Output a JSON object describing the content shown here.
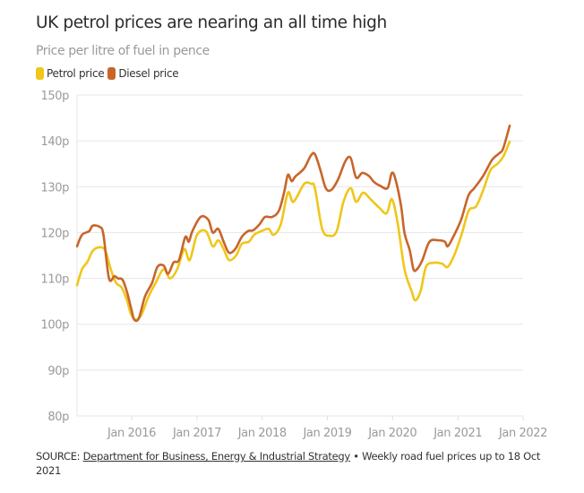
{
  "title": "UK petrol prices are nearing an all time high",
  "subtitle": "Price per litre of fuel in pence",
  "legend": [
    {
      "label": "Petrol price",
      "color": "#f0c619"
    },
    {
      "label": "Diesel price",
      "color": "#c8652b"
    }
  ],
  "source": {
    "prefix": "SOURCE: ",
    "link_text": "Department for Business, Energy & Industrial Strategy",
    "suffix": " • Weekly road fuel prices up to 18 Oct 2021"
  },
  "chart_data": {
    "type": "line",
    "title": "UK petrol prices are nearing an all time high",
    "ylabel": "Price per litre of fuel in pence",
    "ylim": [
      80,
      150
    ],
    "yticks": [
      80,
      90,
      100,
      110,
      120,
      130,
      140,
      150
    ],
    "ytick_labels": [
      "80p",
      "90p",
      "100p",
      "110p",
      "120p",
      "130p",
      "140p",
      "150p"
    ],
    "xlim": [
      "2015-03-01",
      "2022-01-01"
    ],
    "xticks": [
      "2016-01-01",
      "2017-01-01",
      "2018-01-01",
      "2019-01-01",
      "2020-01-01",
      "2021-01-01",
      "2022-01-01"
    ],
    "xtick_labels": [
      "Jan 2016",
      "Jan 2017",
      "Jan 2018",
      "Jan 2019",
      "Jan 2020",
      "Jan 2021",
      "Jan 2022"
    ],
    "grid": "horizontal",
    "legend_position": "top-left",
    "series": [
      {
        "name": "Petrol price",
        "color": "#f0c619",
        "points": [
          [
            "2015-03-01",
            108.5
          ],
          [
            "2015-03-29",
            112
          ],
          [
            "2015-04-28",
            113.6
          ],
          [
            "2015-05-28",
            116
          ],
          [
            "2015-07-07",
            116.8
          ],
          [
            "2015-08-07",
            116
          ],
          [
            "2015-09-06",
            112
          ],
          [
            "2015-10-06",
            109
          ],
          [
            "2015-11-06",
            108
          ],
          [
            "2015-12-06",
            105.2
          ],
          [
            "2015-12-27",
            102.3
          ],
          [
            "2016-01-25",
            101
          ],
          [
            "2016-02-24",
            102
          ],
          [
            "2016-04-04",
            106
          ],
          [
            "2016-05-14",
            109
          ],
          [
            "2016-06-28",
            112
          ],
          [
            "2016-08-03",
            110
          ],
          [
            "2016-09-12",
            112
          ],
          [
            "2016-10-22",
            116.4
          ],
          [
            "2016-11-21",
            114
          ],
          [
            "2017-01-01",
            119.5
          ],
          [
            "2017-02-20",
            120.3
          ],
          [
            "2017-03-30",
            117
          ],
          [
            "2017-04-30",
            118.3
          ],
          [
            "2017-05-30",
            116.4
          ],
          [
            "2017-06-29",
            114
          ],
          [
            "2017-08-08",
            115
          ],
          [
            "2017-09-08",
            117.5
          ],
          [
            "2017-10-18",
            118
          ],
          [
            "2017-11-17",
            119.5
          ],
          [
            "2017-12-27",
            120.3
          ],
          [
            "2018-02-06",
            120.8
          ],
          [
            "2018-03-06",
            119.5
          ],
          [
            "2018-04-15",
            121.8
          ],
          [
            "2018-05-25",
            128.7
          ],
          [
            "2018-06-25",
            126.7
          ],
          [
            "2018-08-24",
            130.6
          ],
          [
            "2018-10-03",
            130.6
          ],
          [
            "2018-10-23",
            129.7
          ],
          [
            "2018-12-03",
            120.8
          ],
          [
            "2019-01-12",
            119.3
          ],
          [
            "2019-02-22",
            120.3
          ],
          [
            "2019-04-01",
            126.7
          ],
          [
            "2019-05-11",
            129.7
          ],
          [
            "2019-06-11",
            126.7
          ],
          [
            "2019-07-20",
            128.7
          ],
          [
            "2019-08-30",
            127.3
          ],
          [
            "2019-10-19",
            125.4
          ],
          [
            "2019-11-29",
            124.2
          ],
          [
            "2019-12-28",
            127.3
          ],
          [
            "2020-01-29",
            122.2
          ],
          [
            "2020-03-08",
            112
          ],
          [
            "2020-04-17",
            107.2
          ],
          [
            "2020-05-07",
            105.2
          ],
          [
            "2020-06-06",
            107.2
          ],
          [
            "2020-07-06",
            112.5
          ],
          [
            "2020-08-16",
            113.4
          ],
          [
            "2020-10-05",
            113.2
          ],
          [
            "2020-11-05",
            112.5
          ],
          [
            "2020-12-15",
            115.4
          ],
          [
            "2021-01-24",
            119.9
          ],
          [
            "2021-03-03",
            124.8
          ],
          [
            "2021-04-13",
            125.7
          ],
          [
            "2021-05-23",
            129.3
          ],
          [
            "2021-07-02",
            133.6
          ],
          [
            "2021-08-11",
            135
          ],
          [
            "2021-09-11",
            136.5
          ],
          [
            "2021-10-18",
            139.8
          ]
        ]
      },
      {
        "name": "Diesel price",
        "color": "#c8652b",
        "points": [
          [
            "2015-03-01",
            117
          ],
          [
            "2015-03-29",
            119.5
          ],
          [
            "2015-05-08",
            120.3
          ],
          [
            "2015-05-28",
            121.5
          ],
          [
            "2015-07-07",
            121.2
          ],
          [
            "2015-07-27",
            119.5
          ],
          [
            "2015-08-27",
            110
          ],
          [
            "2015-09-26",
            110.5
          ],
          [
            "2015-10-16",
            110
          ],
          [
            "2015-11-11",
            109.7
          ],
          [
            "2015-12-06",
            107
          ],
          [
            "2016-01-01",
            103
          ],
          [
            "2016-01-15",
            101
          ],
          [
            "2016-02-10",
            101.3
          ],
          [
            "2016-03-15",
            106
          ],
          [
            "2016-04-24",
            109
          ],
          [
            "2016-05-24",
            112.5
          ],
          [
            "2016-06-28",
            112.8
          ],
          [
            "2016-07-23",
            111
          ],
          [
            "2016-08-23",
            113.5
          ],
          [
            "2016-09-22",
            114
          ],
          [
            "2016-10-27",
            119
          ],
          [
            "2016-11-16",
            118
          ],
          [
            "2016-12-06",
            120.3
          ],
          [
            "2017-01-21",
            123.4
          ],
          [
            "2017-03-05",
            122.8
          ],
          [
            "2017-03-30",
            120
          ],
          [
            "2017-04-30",
            120.8
          ],
          [
            "2017-05-30",
            118
          ],
          [
            "2017-06-29",
            115.6
          ],
          [
            "2017-08-03",
            116.4
          ],
          [
            "2017-09-08",
            119
          ],
          [
            "2017-10-13",
            120.3
          ],
          [
            "2017-11-12",
            120.5
          ],
          [
            "2017-12-17",
            121.8
          ],
          [
            "2018-01-17",
            123.4
          ],
          [
            "2018-02-26",
            123.4
          ],
          [
            "2018-04-05",
            124.8
          ],
          [
            "2018-05-05",
            129
          ],
          [
            "2018-05-25",
            132.6
          ],
          [
            "2018-06-15",
            131.2
          ],
          [
            "2018-07-05",
            132.2
          ],
          [
            "2018-08-24",
            134
          ],
          [
            "2018-09-29",
            136.7
          ],
          [
            "2018-10-23",
            137.1
          ],
          [
            "2018-11-23",
            133.6
          ],
          [
            "2018-12-23",
            129.7
          ],
          [
            "2019-01-23",
            129.3
          ],
          [
            "2019-03-02",
            131.6
          ],
          [
            "2019-04-11",
            135.5
          ],
          [
            "2019-05-11",
            136.3
          ],
          [
            "2019-06-11",
            132
          ],
          [
            "2019-07-15",
            133
          ],
          [
            "2019-08-20",
            132.4
          ],
          [
            "2019-09-20",
            131
          ],
          [
            "2019-10-24",
            130.2
          ],
          [
            "2019-12-04",
            129.7
          ],
          [
            "2019-12-28",
            133
          ],
          [
            "2020-01-18",
            131.5
          ],
          [
            "2020-02-18",
            125.7
          ],
          [
            "2020-03-08",
            119.9
          ],
          [
            "2020-04-07",
            116
          ],
          [
            "2020-04-27",
            112
          ],
          [
            "2020-05-17",
            112
          ],
          [
            "2020-06-16",
            114
          ],
          [
            "2020-07-26",
            118
          ],
          [
            "2020-09-15",
            118.3
          ],
          [
            "2020-10-20",
            118
          ],
          [
            "2020-11-05",
            117
          ],
          [
            "2020-12-05",
            119
          ],
          [
            "2021-01-19",
            122.8
          ],
          [
            "2021-02-28",
            128
          ],
          [
            "2021-04-03",
            129.7
          ],
          [
            "2021-05-23",
            132.4
          ],
          [
            "2021-07-12",
            135.9
          ],
          [
            "2021-08-21",
            137.3
          ],
          [
            "2021-09-11",
            138.3
          ],
          [
            "2021-10-18",
            143.3
          ]
        ]
      }
    ]
  }
}
